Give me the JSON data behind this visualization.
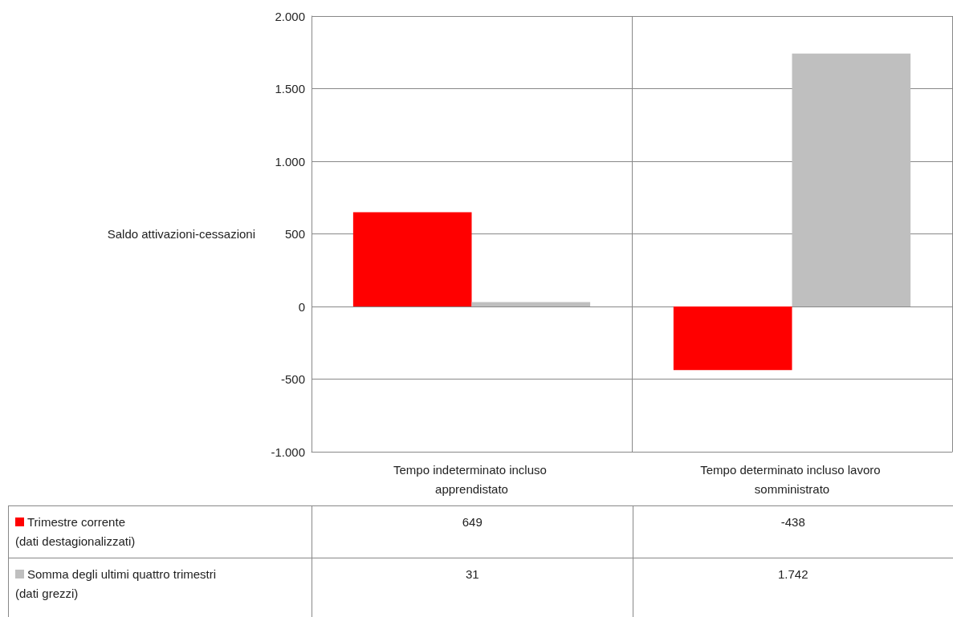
{
  "chart_data": {
    "type": "bar",
    "ylabel": "Saldo attivazioni-cessazioni",
    "categories": [
      "Tempo indeterminato incluso apprendistato",
      "Tempo determinato incluso lavoro somministrato"
    ],
    "series": [
      {
        "name": "Trimestre corrente\n(dati destagionalizzati)",
        "color": "#ff0000",
        "values": [
          649,
          -438
        ],
        "value_labels": [
          "649",
          "-438"
        ]
      },
      {
        "name": "Somma degli ultimi quattro trimestri\n(dati grezzi)",
        "color": "#bfbfbf",
        "values": [
          31,
          1742
        ],
        "value_labels": [
          "31",
          "1.742"
        ]
      }
    ],
    "ylim": [
      -1000,
      2000
    ],
    "yticks": [
      {
        "value": -1000,
        "label": "-1.000"
      },
      {
        "value": -500,
        "label": "-500"
      },
      {
        "value": 0,
        "label": "0"
      },
      {
        "value": 500,
        "label": "500"
      },
      {
        "value": 1000,
        "label": "1.000"
      },
      {
        "value": 1500,
        "label": "1.500"
      },
      {
        "value": 2000,
        "label": "2.000"
      }
    ],
    "grid": true,
    "legend": "bottom"
  }
}
